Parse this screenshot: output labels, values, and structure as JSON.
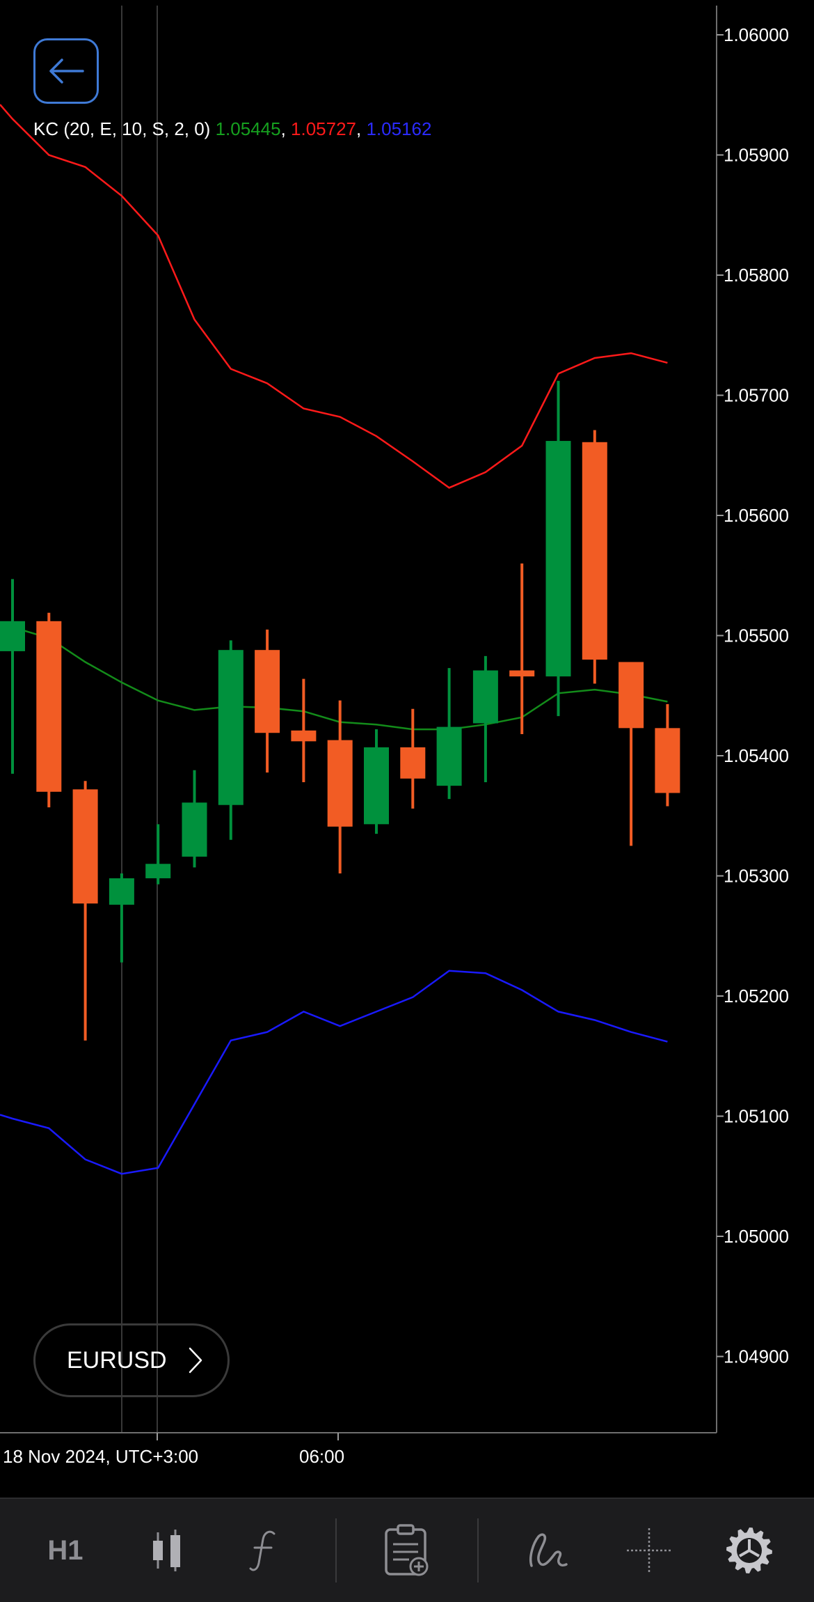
{
  "header": {
    "back_icon": "arrow-left-icon"
  },
  "indicator": {
    "name": "KC (20, E, 10, S, 2, 0)",
    "middle": "1.05445",
    "upper": "1.05727",
    "lower": "1.05162",
    "colors": {
      "middle": "#138c1a",
      "upper": "#ff1a1a",
      "lower": "#1a1aff"
    }
  },
  "symbol": {
    "label": "EURUSD"
  },
  "x_axis": {
    "labels": [
      "18 Nov 2024, UTC+3:00",
      "06:00"
    ]
  },
  "toolbar": {
    "timeframe": "H1",
    "items": [
      "candlestick-icon",
      "function-icon",
      "order-add-icon",
      "draw-icon",
      "crosshair-icon",
      "settings-icon"
    ]
  },
  "chart_data": {
    "type": "candlestick",
    "symbol": "EURUSD",
    "timeframe": "H1",
    "ylim": [
      1.0485,
      1.0604
    ],
    "y_ticks": [
      "1.06000",
      "1.05900",
      "1.05800",
      "1.05700",
      "1.05600",
      "1.05500",
      "1.05400",
      "1.05300",
      "1.05200",
      "1.05100",
      "1.05000",
      "1.04900"
    ],
    "colors": {
      "up": "#00913d",
      "down": "#f25c24"
    },
    "candles": [
      {
        "o": 1.05487,
        "h": 1.05547,
        "l": 1.05385,
        "c": 1.05512
      },
      {
        "o": 1.05512,
        "h": 1.05519,
        "l": 1.05357,
        "c": 1.0537
      },
      {
        "o": 1.05372,
        "h": 1.05379,
        "l": 1.05163,
        "c": 1.05277
      },
      {
        "o": 1.05276,
        "h": 1.05302,
        "l": 1.05228,
        "c": 1.05298
      },
      {
        "o": 1.05298,
        "h": 1.05343,
        "l": 1.05293,
        "c": 1.0531
      },
      {
        "o": 1.05316,
        "h": 1.05388,
        "l": 1.05307,
        "c": 1.05361
      },
      {
        "o": 1.05359,
        "h": 1.05496,
        "l": 1.0533,
        "c": 1.05488
      },
      {
        "o": 1.05488,
        "h": 1.05505,
        "l": 1.05386,
        "c": 1.05419
      },
      {
        "o": 1.05421,
        "h": 1.05464,
        "l": 1.05378,
        "c": 1.05412
      },
      {
        "o": 1.05413,
        "h": 1.05446,
        "l": 1.05302,
        "c": 1.05341
      },
      {
        "o": 1.05343,
        "h": 1.05422,
        "l": 1.05335,
        "c": 1.05407
      },
      {
        "o": 1.05407,
        "h": 1.05439,
        "l": 1.05356,
        "c": 1.05381
      },
      {
        "o": 1.05375,
        "h": 1.05473,
        "l": 1.05364,
        "c": 1.05424
      },
      {
        "o": 1.05427,
        "h": 1.05483,
        "l": 1.05378,
        "c": 1.05471
      },
      {
        "o": 1.05471,
        "h": 1.0556,
        "l": 1.05418,
        "c": 1.05466
      },
      {
        "o": 1.05466,
        "h": 1.05712,
        "l": 1.05433,
        "c": 1.05662
      },
      {
        "o": 1.05661,
        "h": 1.05671,
        "l": 1.0546,
        "c": 1.0548
      },
      {
        "o": 1.05478,
        "h": 1.05478,
        "l": 1.05325,
        "c": 1.05423
      },
      {
        "o": 1.05423,
        "h": 1.05443,
        "l": 1.05358,
        "c": 1.05369
      }
    ],
    "upper_band": [
      1.0593,
      1.059,
      1.0589,
      1.05866,
      1.05833,
      1.05763,
      1.05722,
      1.0571,
      1.05689,
      1.05682,
      1.05666,
      1.05645,
      1.05623,
      1.05636,
      1.05658,
      1.05718,
      1.05731,
      1.05735,
      1.05727
    ],
    "middle_band": [
      1.05507,
      1.05498,
      1.05478,
      1.05461,
      1.05446,
      1.05438,
      1.05441,
      1.0544,
      1.05437,
      1.05428,
      1.05426,
      1.05422,
      1.05422,
      1.05426,
      1.05432,
      1.05452,
      1.05455,
      1.05451,
      1.05445
    ],
    "lower_band": [
      1.05098,
      1.0509,
      1.05064,
      1.05052,
      1.05057,
      1.0511,
      1.05163,
      1.0517,
      1.05187,
      1.05175,
      1.05187,
      1.05199,
      1.05221,
      1.05219,
      1.05205,
      1.05187,
      1.0518,
      1.0517,
      1.05162
    ]
  }
}
